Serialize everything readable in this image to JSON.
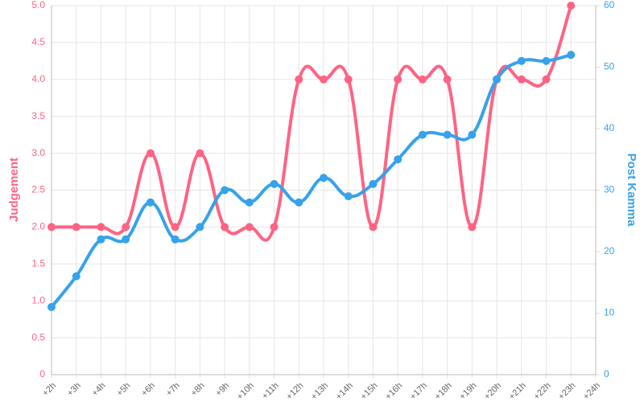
{
  "chart_data": {
    "type": "line",
    "categories": [
      "+2h",
      "+3h",
      "+4h",
      "+5h",
      "+6h",
      "+7h",
      "+8h",
      "+9h",
      "+10h",
      "+11h",
      "+12h",
      "+13h",
      "+14h",
      "+15h",
      "+16h",
      "+17h",
      "+18h",
      "+19h",
      "+20h",
      "+21h",
      "+22h",
      "+23h",
      "+24h"
    ],
    "series": [
      {
        "name": "Judgement",
        "color": "#ff6384",
        "values": [
          2,
          2,
          2,
          2,
          3,
          2,
          3,
          2,
          2,
          2,
          4,
          4,
          4,
          2,
          4,
          4,
          4,
          2,
          4,
          4,
          4,
          5,
          null
        ]
      },
      {
        "name": "Post Kamma",
        "color": "#36a2eb",
        "axis": "y2",
        "values": [
          11,
          16,
          22,
          22,
          28,
          22,
          24,
          30,
          28,
          31,
          28,
          32,
          29,
          31,
          35,
          39,
          39,
          39,
          48,
          51,
          51,
          52,
          null
        ]
      }
    ],
    "ylim": [
      0,
      5
    ],
    "yticks": [
      0,
      0.5,
      {
        "value": 1,
        "label": "1.0"
      },
      1.5,
      {
        "value": 2,
        "label": "2.0"
      },
      2.5,
      {
        "value": 3,
        "label": "3.0"
      },
      3.5,
      {
        "value": 4,
        "label": "4.0"
      },
      4.5,
      {
        "value": 5,
        "label": "5.0"
      }
    ],
    "y2lim": [
      0,
      60
    ],
    "y2ticks": [
      0,
      10,
      20,
      30,
      40,
      50,
      60
    ],
    "grid": true
  }
}
